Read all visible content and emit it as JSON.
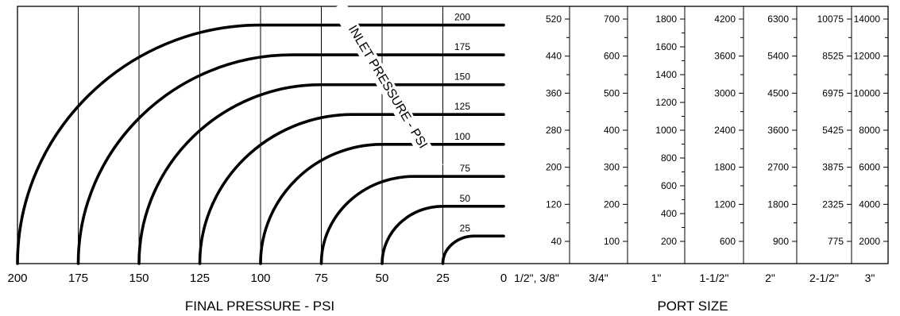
{
  "chart_data": {
    "type": "line",
    "title": "",
    "xlabel": "FINAL PRESSURE - PSI",
    "port_axis_label": "PORT SIZE",
    "curve_group_label": "INLET PRESSURE - PSI",
    "x_ticks": [
      "200",
      "175",
      "150",
      "125",
      "100",
      "75",
      "50",
      "25",
      "0"
    ],
    "xlim": [
      200,
      0
    ],
    "series": [
      {
        "name": "200",
        "inlet": 200,
        "flow": 520,
        "knee": 100
      },
      {
        "name": "175",
        "inlet": 175,
        "flow": 455,
        "knee": 87
      },
      {
        "name": "150",
        "inlet": 150,
        "flow": 390,
        "knee": 75
      },
      {
        "name": "125",
        "inlet": 125,
        "flow": 325,
        "knee": 62
      },
      {
        "name": "100",
        "inlet": 100,
        "flow": 260,
        "knee": 50
      },
      {
        "name": "75",
        "inlet": 75,
        "flow": 190,
        "knee": 37
      },
      {
        "name": "50",
        "inlet": 50,
        "flow": 125,
        "knee": 25
      },
      {
        "name": "25",
        "inlet": 25,
        "flow": 60,
        "knee": 12
      }
    ],
    "flow_scales": [
      {
        "port": "1/2\", 3/8\"",
        "ticks": [
          "520",
          "440",
          "360",
          "280",
          "200",
          "120",
          "40"
        ],
        "values": [
          520,
          440,
          360,
          280,
          200,
          120,
          40
        ]
      },
      {
        "port": "3/4\"",
        "ticks": [
          "700",
          "600",
          "500",
          "400",
          "300",
          "200",
          "100"
        ],
        "values": [
          700,
          600,
          500,
          400,
          300,
          200,
          100
        ]
      },
      {
        "port": "1\"",
        "ticks": [
          "1800",
          "1600",
          "1400",
          "1200",
          "1000",
          "800",
          "600",
          "400",
          "200"
        ],
        "values": [
          1800,
          1600,
          1400,
          1200,
          1000,
          800,
          600,
          400,
          200
        ]
      },
      {
        "port": "1-1/2\"",
        "ticks": [
          "4200",
          "3600",
          "3000",
          "2400",
          "1800",
          "1200",
          "600"
        ],
        "values": [
          4200,
          3600,
          3000,
          2400,
          1800,
          1200,
          600
        ]
      },
      {
        "port": "2\"",
        "ticks": [
          "6300",
          "5400",
          "4500",
          "3600",
          "2700",
          "1800",
          "900"
        ],
        "values": [
          6300,
          5400,
          4500,
          3600,
          2700,
          1800,
          900
        ]
      },
      {
        "port": "2-1/2\"",
        "ticks": [
          "10075",
          "8525",
          "6975",
          "5425",
          "3875",
          "2325",
          "775"
        ],
        "values": [
          10075,
          8525,
          6975,
          5425,
          3875,
          2325,
          775
        ]
      },
      {
        "port": "3\"",
        "ticks": [
          "14000",
          "12000",
          "10000",
          "8000",
          "6000",
          "4000",
          "2000"
        ],
        "values": [
          14000,
          12000,
          10000,
          8000,
          6000,
          4000,
          2000
        ]
      }
    ]
  }
}
